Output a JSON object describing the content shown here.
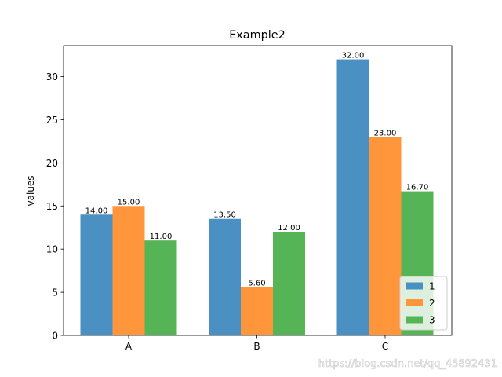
{
  "chart_data": {
    "type": "bar",
    "title": "Example2",
    "xlabel": "",
    "ylabel": "values",
    "categories": [
      "A",
      "B",
      "C"
    ],
    "series": [
      {
        "name": "1",
        "values": [
          14.0,
          13.5,
          32.0
        ],
        "labels": [
          "14.00",
          "13.50",
          "32.00"
        ],
        "color": "#4a90c2"
      },
      {
        "name": "2",
        "values": [
          15.0,
          5.6,
          23.0
        ],
        "labels": [
          "15.00",
          "5.60",
          "23.00"
        ],
        "color": "#ff963c"
      },
      {
        "name": "3",
        "values": [
          11.0,
          12.0,
          16.7
        ],
        "labels": [
          "11.00",
          "12.00",
          "16.70"
        ],
        "color": "#55b456"
      }
    ],
    "ylim": [
      0,
      33.6
    ],
    "yticks": [
      0,
      5,
      10,
      15,
      20,
      25,
      30
    ],
    "grid": false,
    "legend_position": "lower-right"
  },
  "watermark": "https://blog.csdn.net/qq_45892431"
}
